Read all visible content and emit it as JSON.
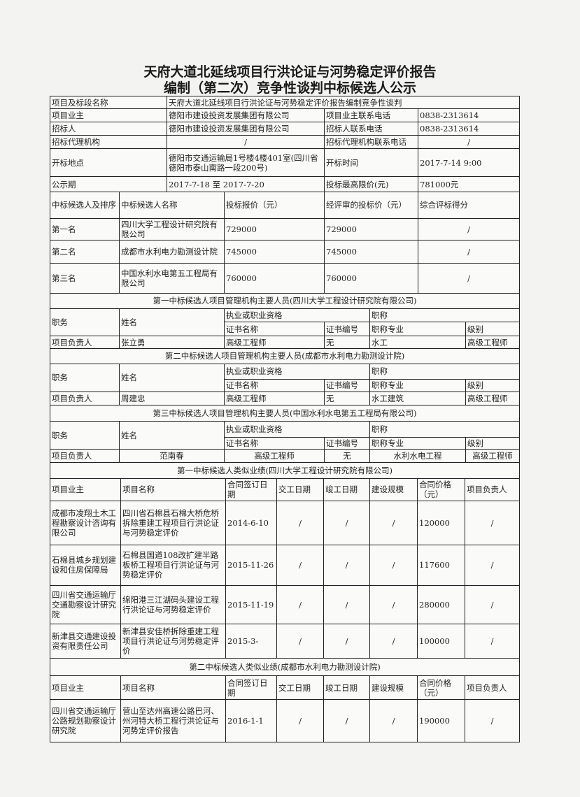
{
  "title": {
    "line1": "天府大道北延线项目行洪论证与河势稳定评价报告",
    "line2": "编制（第二次）竞争性谈判中标候选人公示"
  },
  "info": {
    "project_label": "项目及标段名称",
    "project_value": "天府大道北延线项目行洪论证与河势稳定评价报告编制竞争性谈判",
    "owner_label": "项目业主",
    "owner_value": "德阳市建设投资发展集团有限公司",
    "owner_phone_label": "项目业主联系电话",
    "owner_phone": "0838-2313614",
    "bidder_label": "招标人",
    "bidder_value": "德阳市建设投资发展集团有限公司",
    "bidder_phone_label": "招标人联系电话",
    "bidder_phone": "0838-2313614",
    "agency_label": "招标代理机构",
    "agency_value": "/",
    "agency_phone_label": "招标代理机构联系电话",
    "agency_phone": "/",
    "location_label": "开标地点",
    "location_value": "德阳市交通运输局1号楼4楼401室(四川省德阳市泰山南路一段200号)",
    "open_time_label": "开标时间",
    "open_time": "2017-7-14 9:00",
    "period_label": "公示期",
    "period_value": "2017-7-18   至   2017-7-20",
    "max_price_label": "投标最高限价(元)",
    "max_price": "781000元"
  },
  "candidates": {
    "headers": [
      "中标候选人及排序",
      "中标候选人名称",
      "投标报价（元）",
      "经评审的投标价（元）",
      "综合评标得分"
    ],
    "rows": [
      [
        "第一名",
        "四川大学工程设计研究院有限公司",
        "729000",
        "729000",
        "/"
      ],
      [
        "第二名",
        "成都市水利电力勘测设计院",
        "745000",
        "745000",
        "/"
      ],
      [
        "第三名",
        "中国水利水电第五工程局有限公司",
        "760000",
        "760000",
        "/"
      ]
    ]
  },
  "personnel": [
    {
      "title": "第一中标候选人项目管理机构主要人员(四川大学工程设计研究院有限公司)",
      "headers": [
        "职务",
        "姓名",
        "执业或职业资格",
        "职称",
        "证书名称",
        "证书编号",
        "职称专业",
        "级别"
      ],
      "row": [
        "项目负责人",
        "张立勇",
        "高级工程师",
        "无",
        "水工",
        "高级工程师"
      ]
    },
    {
      "title": "第二中标候选人项目管理机构主要人员(成都市水利电力勘测设计院)",
      "headers": [
        "职务",
        "姓名",
        "执业或职业资格",
        "职称",
        "证书名称",
        "证书编号",
        "职称专业",
        "级别"
      ],
      "row": [
        "项目负责人",
        "周建忠",
        "高级工程师",
        "无",
        "水工建筑",
        "高级工程师"
      ]
    },
    {
      "title": "第三中标候选人项目管理机构主要人员(中国水利水电第五工程局有限公司)",
      "headers": [
        "职务",
        "姓名",
        "执业或职业资格",
        "职称",
        "证书名称",
        "证书编号",
        "职称专业",
        "级别"
      ],
      "row": [
        "项目负责人",
        "范南春",
        "高级工程师",
        "无",
        "水利水电工程",
        "高级工程师"
      ]
    }
  ],
  "performance": [
    {
      "title": "第一中标候选人类似业绩(四川大学工程设计研究院有限公司)",
      "headers": [
        "项目业主",
        "项目名称",
        "合同签订日期",
        "交工日期",
        "竣工日期",
        "建设规模",
        "合同价格（元）",
        "项目负责人"
      ],
      "rows": [
        [
          "成都市凌翔土木工程勘察设计咨询有限公司",
          "四川省石棉县石棉大桥危桥拆除重建工程项目行洪论证与河势稳定评价",
          "2014-6-10",
          "/",
          "/",
          "/",
          "120000",
          "/"
        ],
        [
          "石棉县城乡规划建设和住房保障局",
          "石棉县国道108改扩建半路板桥工程项目行洪论证与河势稳定评价",
          "2015-11-26",
          "/",
          "/",
          "/",
          "117600",
          "/"
        ],
        [
          "四川省交通运输厅交通勘察设计研究院",
          "绵阳港三江湖码头建设工程行洪论证与河势稳定评价",
          "2015-11-19",
          "/",
          "/",
          "/",
          "280000",
          "/"
        ],
        [
          "新津县交通建设投资有限责任公司",
          "新津县安佳桥拆除重建工程项目行洪论证与河势稳定评价",
          "2015-3-",
          "/",
          "/",
          "/",
          "100000",
          "/"
        ]
      ]
    },
    {
      "title": "第二中标候选人类似业绩(成都市水利电力勘测设计院)",
      "headers": [
        "项目业主",
        "项目名称",
        "合同签订日期",
        "交工日期",
        "竣工日期",
        "建设规模",
        "合同价格（元）",
        "项目负责人"
      ],
      "rows": [
        [
          "四川省交通运输厅公路规划勘察设计研究院",
          "营山至达州高速公路巴河、州河特大桥工程行洪论证与河势定评价报告",
          "2016-1-1",
          "/",
          "/",
          "/",
          "190000",
          "/"
        ]
      ]
    }
  ]
}
